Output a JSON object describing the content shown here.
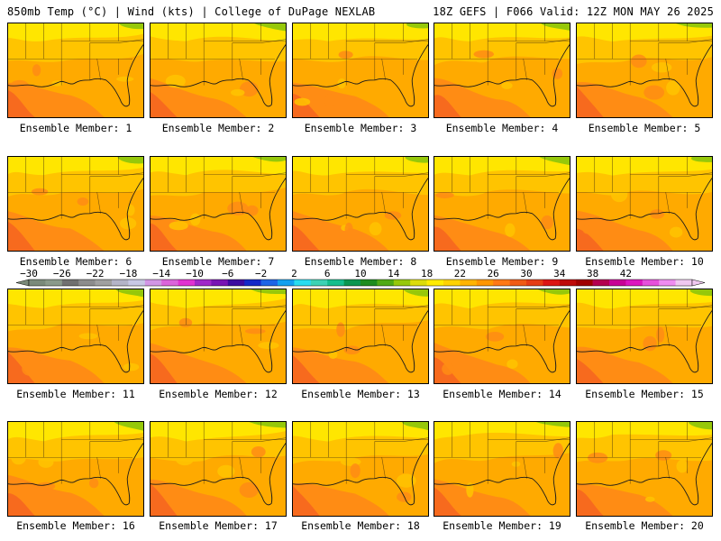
{
  "header": {
    "left": "850mb Temp (°C) | Wind (kts) | College of DuPage NEXLAB",
    "right": "18Z GEFS | F066 Valid: 12Z MON MAY 26 2025"
  },
  "caption_prefix": "Ensemble Member: ",
  "members": [
    {
      "id": 1,
      "label": "Ensemble Member: 1"
    },
    {
      "id": 2,
      "label": "Ensemble Member: 2"
    },
    {
      "id": 3,
      "label": "Ensemble Member: 3"
    },
    {
      "id": 4,
      "label": "Ensemble Member: 4"
    },
    {
      "id": 5,
      "label": "Ensemble Member: 5"
    },
    {
      "id": 6,
      "label": "Ensemble Member: 6"
    },
    {
      "id": 7,
      "label": "Ensemble Member: 7"
    },
    {
      "id": 8,
      "label": "Ensemble Member: 8"
    },
    {
      "id": 9,
      "label": "Ensemble Member: 9"
    },
    {
      "id": 10,
      "label": "Ensemble Member: 10"
    },
    {
      "id": 11,
      "label": "Ensemble Member: 11"
    },
    {
      "id": 12,
      "label": "Ensemble Member: 12"
    },
    {
      "id": 13,
      "label": "Ensemble Member: 13"
    },
    {
      "id": 14,
      "label": "Ensemble Member: 14"
    },
    {
      "id": 15,
      "label": "Ensemble Member: 15"
    },
    {
      "id": 16,
      "label": "Ensemble Member: 16"
    },
    {
      "id": 17,
      "label": "Ensemble Member: 17"
    },
    {
      "id": 18,
      "label": "Ensemble Member: 18"
    },
    {
      "id": 19,
      "label": "Ensemble Member: 19"
    },
    {
      "id": 20,
      "label": "Ensemble Member: 20"
    }
  ],
  "colorbar": {
    "tick_labels": [
      "-30",
      "-26",
      "-22",
      "-18",
      "-14",
      "-10",
      "-6",
      "-2",
      "2",
      "6",
      "10",
      "14",
      "18",
      "22",
      "26",
      "30",
      "34",
      "38",
      "42"
    ],
    "colors": [
      "#7a8a7a",
      "#8a9a8a",
      "#707070",
      "#8c8c8c",
      "#a0a0a0",
      "#b4b4c8",
      "#c8c8e6",
      "#d296e6",
      "#dc64dc",
      "#e132d2",
      "#a028c8",
      "#7814b4",
      "#3c0aa0",
      "#1428c8",
      "#1e64e6",
      "#14a0f0",
      "#28dcf0",
      "#3cd2b4",
      "#14be8c",
      "#0a9650",
      "#1e8c1e",
      "#50aa14",
      "#96c80a",
      "#dcdc0a",
      "#ffeb00",
      "#ffd200",
      "#ffb400",
      "#ff9600",
      "#ff7814",
      "#f05a14",
      "#e63c14",
      "#dc1414",
      "#be0a0a",
      "#a00000",
      "#b40050",
      "#c80096",
      "#dc14be",
      "#e650dc",
      "#f08cf0",
      "#f0c8f0"
    ],
    "palette": {
      "yellow": "#ffe600",
      "yellow_orange": "#ffc400",
      "orange": "#ffaa00",
      "deep_orange": "#ff8c14",
      "red_orange": "#f76a1e",
      "green_edge": "#96c80a"
    }
  }
}
